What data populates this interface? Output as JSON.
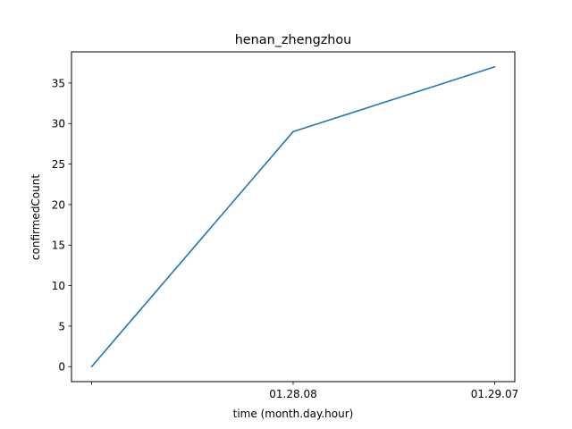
{
  "chart_data": {
    "type": "line",
    "title": "henan_zhengzhou",
    "xlabel": "time (month.day.hour)",
    "ylabel": "confirmedCount",
    "x_tick_labels": [
      "",
      "01.28.08",
      "01.29.07"
    ],
    "y_ticks": [
      0,
      5,
      10,
      15,
      20,
      25,
      30,
      35
    ],
    "ylim": [
      -1.85,
      38.85
    ],
    "grid": false,
    "series": [
      {
        "color": "#1f77b4",
        "values": [
          0,
          29,
          37
        ]
      }
    ]
  }
}
